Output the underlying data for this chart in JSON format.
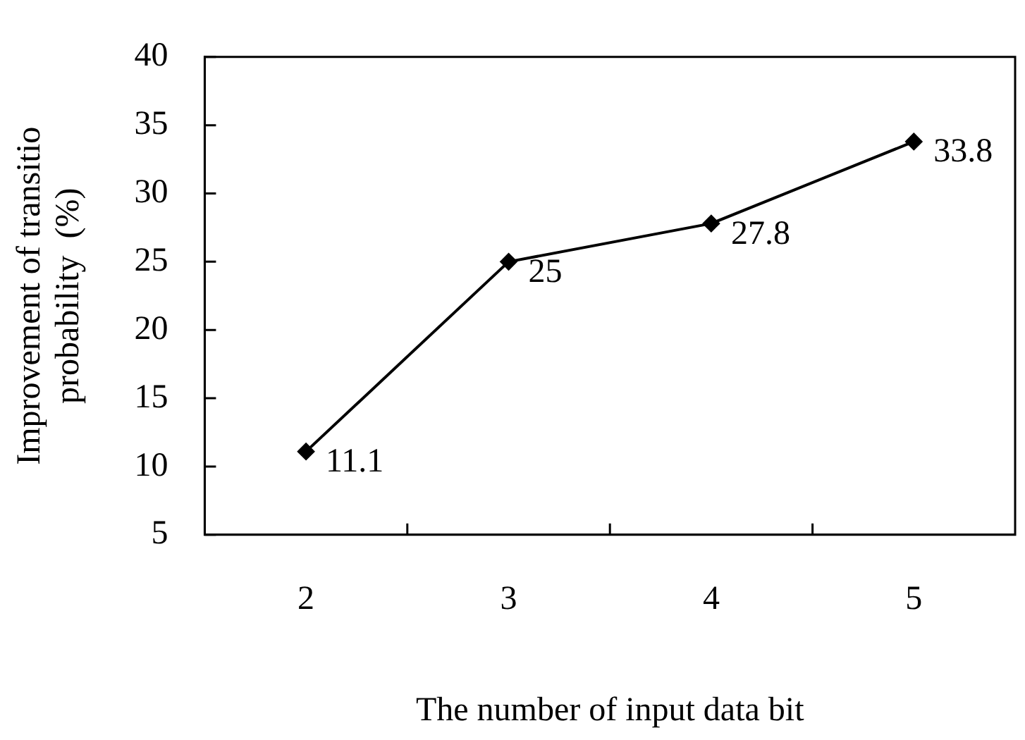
{
  "chart_data": {
    "type": "line",
    "xlabel": "The number of input data bit",
    "ylabel": "Improvement of transitio\nprobability  (%)",
    "categories": [
      "2",
      "3",
      "4",
      "5"
    ],
    "series": [
      {
        "color": "#000000",
        "values": [
          11.1,
          25,
          27.8,
          33.8
        ]
      }
    ],
    "ylim": [
      5,
      40
    ],
    "yticks": [
      5,
      10,
      15,
      20,
      25,
      30,
      35,
      40
    ],
    "grid": false,
    "legend": false,
    "marker": "diamond",
    "line_style": "solid",
    "data_labels": true
  }
}
